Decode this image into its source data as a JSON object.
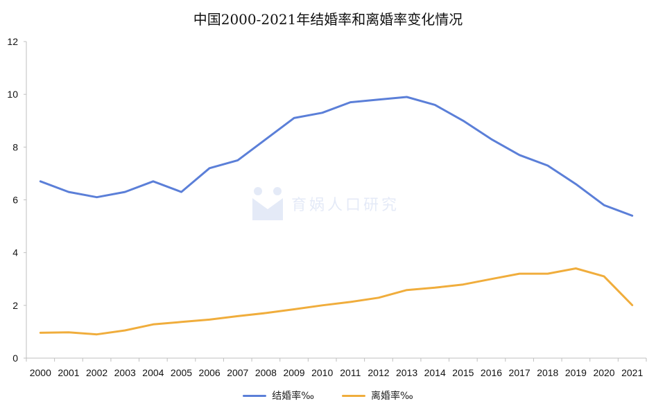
{
  "chart_data": {
    "type": "line",
    "title": "中国2000-2021年结婚率和离婚率变化情况",
    "categories": [
      "2000",
      "2001",
      "2002",
      "2003",
      "2004",
      "2005",
      "2006",
      "2007",
      "2008",
      "2009",
      "2010",
      "2011",
      "2012",
      "2013",
      "2014",
      "2015",
      "2016",
      "2017",
      "2018",
      "2019",
      "2020",
      "2021"
    ],
    "series": [
      {
        "name": "结婚率‰",
        "color": "#5b7fd8",
        "values": [
          6.7,
          6.3,
          6.1,
          6.3,
          6.7,
          6.3,
          7.2,
          7.5,
          8.3,
          9.1,
          9.3,
          9.7,
          9.8,
          9.9,
          9.6,
          9.0,
          8.3,
          7.7,
          7.3,
          6.6,
          5.8,
          5.4
        ]
      },
      {
        "name": "离婚率‰",
        "color": "#f0ad3c",
        "values": [
          0.96,
          0.98,
          0.9,
          1.05,
          1.28,
          1.37,
          1.46,
          1.59,
          1.71,
          1.85,
          2.0,
          2.13,
          2.29,
          2.58,
          2.67,
          2.79,
          3.0,
          3.2,
          3.2,
          3.4,
          3.1,
          2.01
        ]
      }
    ],
    "ylim": [
      0,
      12
    ],
    "yticks": [
      0,
      2,
      4,
      6,
      8,
      10,
      12
    ],
    "xlabel": "",
    "ylabel": "",
    "grid": false,
    "legend_position": "bottom"
  },
  "watermark": {
    "text": "育娲人口研究"
  }
}
